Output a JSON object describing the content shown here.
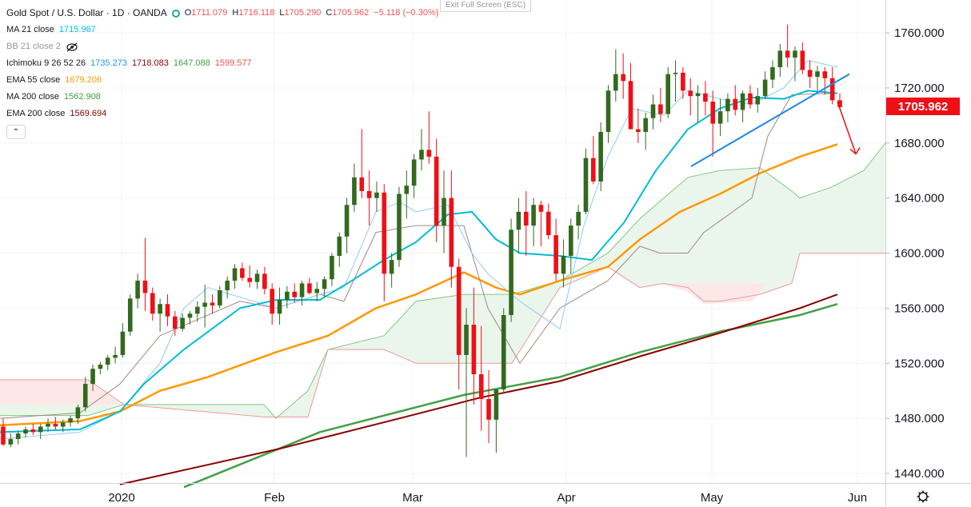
{
  "header": {
    "title": "Gold Spot / U.S. Dollar · 1D · OANDA",
    "ohlc": [
      {
        "label": "O",
        "value": "1711.079"
      },
      {
        "label": "H",
        "value": "1716.118"
      },
      {
        "label": "L",
        "value": "1705.290"
      },
      {
        "label": "C",
        "value": "1705.962"
      }
    ],
    "change": "−5.118 (−0.30%)",
    "exit_fullscreen": "Exit Full Screen (ESC)"
  },
  "indicators": [
    {
      "name": "MA 21 close",
      "values": [
        "1715.967"
      ],
      "colors": [
        "#00bcd4"
      ]
    },
    {
      "name": "BB 21 close 2",
      "values": [],
      "colors": []
    },
    {
      "name": "Ichimoku 9 26 52 26",
      "values": [
        "1735.273",
        "1718.083",
        "1647.088",
        "1599.577"
      ],
      "colors": [
        "#2196f3",
        "#8b0000",
        "#43a047",
        "#ef5350"
      ]
    },
    {
      "name": "EMA 55 close",
      "values": [
        "1679.206"
      ],
      "colors": [
        "#ff9800"
      ]
    },
    {
      "name": "MA 200 close",
      "values": [
        "1562.908"
      ],
      "colors": [
        "#43a047"
      ]
    },
    {
      "name": "EMA 200 close",
      "values": [
        "1569.694"
      ],
      "colors": [
        "#8b0000"
      ]
    }
  ],
  "last_price": "1705.962",
  "chart_data": {
    "type": "candlestick",
    "y_ticks": [
      "1760.000",
      "1720.000",
      "1680.000",
      "1640.000",
      "1600.000",
      "1560.000",
      "1520.000",
      "1480.000",
      "1440.000"
    ],
    "x_ticks": [
      "2020",
      "Feb",
      "Mar",
      "Apr",
      "May",
      "Jun"
    ],
    "ylim": [
      1430,
      1770
    ],
    "candles": [
      [
        1474,
        1480,
        1460,
        1461
      ],
      [
        1461,
        1469,
        1459,
        1465
      ],
      [
        1465,
        1471,
        1461,
        1469
      ],
      [
        1469,
        1474,
        1466,
        1472
      ],
      [
        1472,
        1476,
        1468,
        1470
      ],
      [
        1470,
        1476,
        1465,
        1474
      ],
      [
        1474,
        1480,
        1470,
        1476
      ],
      [
        1476,
        1481,
        1472,
        1474
      ],
      [
        1474,
        1479,
        1470,
        1477
      ],
      [
        1477,
        1482,
        1474,
        1480
      ],
      [
        1480,
        1490,
        1476,
        1488
      ],
      [
        1488,
        1510,
        1485,
        1505
      ],
      [
        1505,
        1519,
        1500,
        1516
      ],
      [
        1516,
        1521,
        1512,
        1519
      ],
      [
        1519,
        1526,
        1515,
        1524
      ],
      [
        1524,
        1532,
        1520,
        1526
      ],
      [
        1526,
        1549,
        1524,
        1543
      ],
      [
        1543,
        1570,
        1540,
        1567
      ],
      [
        1567,
        1585,
        1560,
        1580
      ],
      [
        1580,
        1611,
        1558,
        1571
      ],
      [
        1571,
        1575,
        1551,
        1556
      ],
      [
        1556,
        1567,
        1543,
        1563
      ],
      [
        1563,
        1570,
        1547,
        1554
      ],
      [
        1554,
        1558,
        1540,
        1545
      ],
      [
        1545,
        1556,
        1543,
        1553
      ],
      [
        1553,
        1558,
        1548,
        1556
      ],
      [
        1556,
        1565,
        1550,
        1561
      ],
      [
        1561,
        1577,
        1546,
        1564
      ],
      [
        1564,
        1570,
        1556,
        1562
      ],
      [
        1562,
        1576,
        1560,
        1573
      ],
      [
        1573,
        1583,
        1567,
        1580
      ],
      [
        1580,
        1592,
        1574,
        1589
      ],
      [
        1589,
        1593,
        1580,
        1582
      ],
      [
        1582,
        1591,
        1575,
        1579
      ],
      [
        1579,
        1588,
        1574,
        1585
      ],
      [
        1585,
        1590,
        1570,
        1574
      ],
      [
        1574,
        1578,
        1548,
        1556
      ],
      [
        1556,
        1575,
        1548,
        1566
      ],
      [
        1566,
        1576,
        1560,
        1572
      ],
      [
        1572,
        1578,
        1564,
        1568
      ],
      [
        1568,
        1580,
        1562,
        1578
      ],
      [
        1578,
        1582,
        1570,
        1571
      ],
      [
        1571,
        1579,
        1565,
        1574
      ],
      [
        1574,
        1583,
        1568,
        1581
      ],
      [
        1581,
        1600,
        1576,
        1598
      ],
      [
        1598,
        1615,
        1590,
        1612
      ],
      [
        1612,
        1640,
        1600,
        1635
      ],
      [
        1635,
        1665,
        1630,
        1655
      ],
      [
        1655,
        1690,
        1640,
        1645
      ],
      [
        1645,
        1660,
        1620,
        1640
      ],
      [
        1640,
        1652,
        1630,
        1644
      ],
      [
        1644,
        1650,
        1565,
        1585
      ],
      [
        1585,
        1600,
        1575,
        1595
      ],
      [
        1595,
        1648,
        1590,
        1643
      ],
      [
        1643,
        1660,
        1625,
        1649
      ],
      [
        1649,
        1672,
        1640,
        1668
      ],
      [
        1668,
        1690,
        1660,
        1675
      ],
      [
        1675,
        1703,
        1665,
        1670
      ],
      [
        1670,
        1683,
        1608,
        1620
      ],
      [
        1620,
        1660,
        1600,
        1640
      ],
      [
        1640,
        1660,
        1575,
        1590
      ],
      [
        1590,
        1596,
        1501,
        1526
      ],
      [
        1526,
        1560,
        1452,
        1548
      ],
      [
        1548,
        1575,
        1490,
        1512
      ],
      [
        1512,
        1547,
        1471,
        1494
      ],
      [
        1494,
        1515,
        1462,
        1479
      ],
      [
        1479,
        1500,
        1455,
        1501
      ],
      [
        1501,
        1560,
        1498,
        1555
      ],
      [
        1555,
        1625,
        1550,
        1617
      ],
      [
        1617,
        1640,
        1600,
        1630
      ],
      [
        1630,
        1645,
        1598,
        1620
      ],
      [
        1620,
        1640,
        1605,
        1635
      ],
      [
        1635,
        1638,
        1605,
        1630
      ],
      [
        1630,
        1636,
        1610,
        1613
      ],
      [
        1613,
        1625,
        1580,
        1585
      ],
      [
        1585,
        1610,
        1575,
        1598
      ],
      [
        1598,
        1625,
        1585,
        1620
      ],
      [
        1620,
        1635,
        1610,
        1630
      ],
      [
        1630,
        1676,
        1628,
        1669
      ],
      [
        1669,
        1685,
        1650,
        1652
      ],
      [
        1652,
        1695,
        1645,
        1688
      ],
      [
        1688,
        1722,
        1680,
        1718
      ],
      [
        1718,
        1748,
        1710,
        1730
      ],
      [
        1730,
        1745,
        1712,
        1725
      ],
      [
        1725,
        1738,
        1690,
        1690
      ],
      [
        1690,
        1705,
        1680,
        1688
      ],
      [
        1688,
        1702,
        1675,
        1698
      ],
      [
        1698,
        1715,
        1690,
        1708
      ],
      [
        1708,
        1720,
        1695,
        1701
      ],
      [
        1701,
        1735,
        1698,
        1730
      ],
      [
        1730,
        1740,
        1710,
        1731
      ],
      [
        1731,
        1735,
        1712,
        1718
      ],
      [
        1718,
        1727,
        1700,
        1714
      ],
      [
        1714,
        1722,
        1695,
        1716
      ],
      [
        1716,
        1725,
        1700,
        1710
      ],
      [
        1710,
        1718,
        1670,
        1694
      ],
      [
        1694,
        1712,
        1685,
        1703
      ],
      [
        1703,
        1716,
        1695,
        1712
      ],
      [
        1712,
        1722,
        1700,
        1704
      ],
      [
        1704,
        1718,
        1695,
        1716
      ],
      [
        1716,
        1722,
        1705,
        1708
      ],
      [
        1708,
        1720,
        1702,
        1714
      ],
      [
        1714,
        1732,
        1712,
        1726
      ],
      [
        1726,
        1740,
        1720,
        1735
      ],
      [
        1735,
        1752,
        1728,
        1747
      ],
      [
        1747,
        1766,
        1735,
        1742
      ],
      [
        1742,
        1750,
        1725,
        1747
      ],
      [
        1747,
        1753,
        1730,
        1733
      ],
      [
        1733,
        1740,
        1720,
        1728
      ],
      [
        1728,
        1736,
        1718,
        1732
      ],
      [
        1732,
        1735,
        1715,
        1727
      ],
      [
        1727,
        1735,
        1708,
        1711
      ],
      [
        1711,
        1716,
        1705,
        1706
      ]
    ],
    "series": [
      {
        "name": "MA 21 close",
        "color": "#00bcd4"
      },
      {
        "name": "BB 21 close 2",
        "color": "#2196f3"
      },
      {
        "name": "Ichimoku 9 26 52 26",
        "color": "#8b0000"
      },
      {
        "name": "EMA 55 close",
        "color": "#ff9800"
      },
      {
        "name": "MA 200 close",
        "color": "#43a047"
      },
      {
        "name": "EMA 200 close",
        "color": "#8b0000"
      }
    ],
    "grid": true,
    "colors": {
      "up": "#33691e",
      "down": "#ef0f16",
      "cloud_bull": "#e8f5e9",
      "cloud_bear": "#fde7e7"
    }
  }
}
